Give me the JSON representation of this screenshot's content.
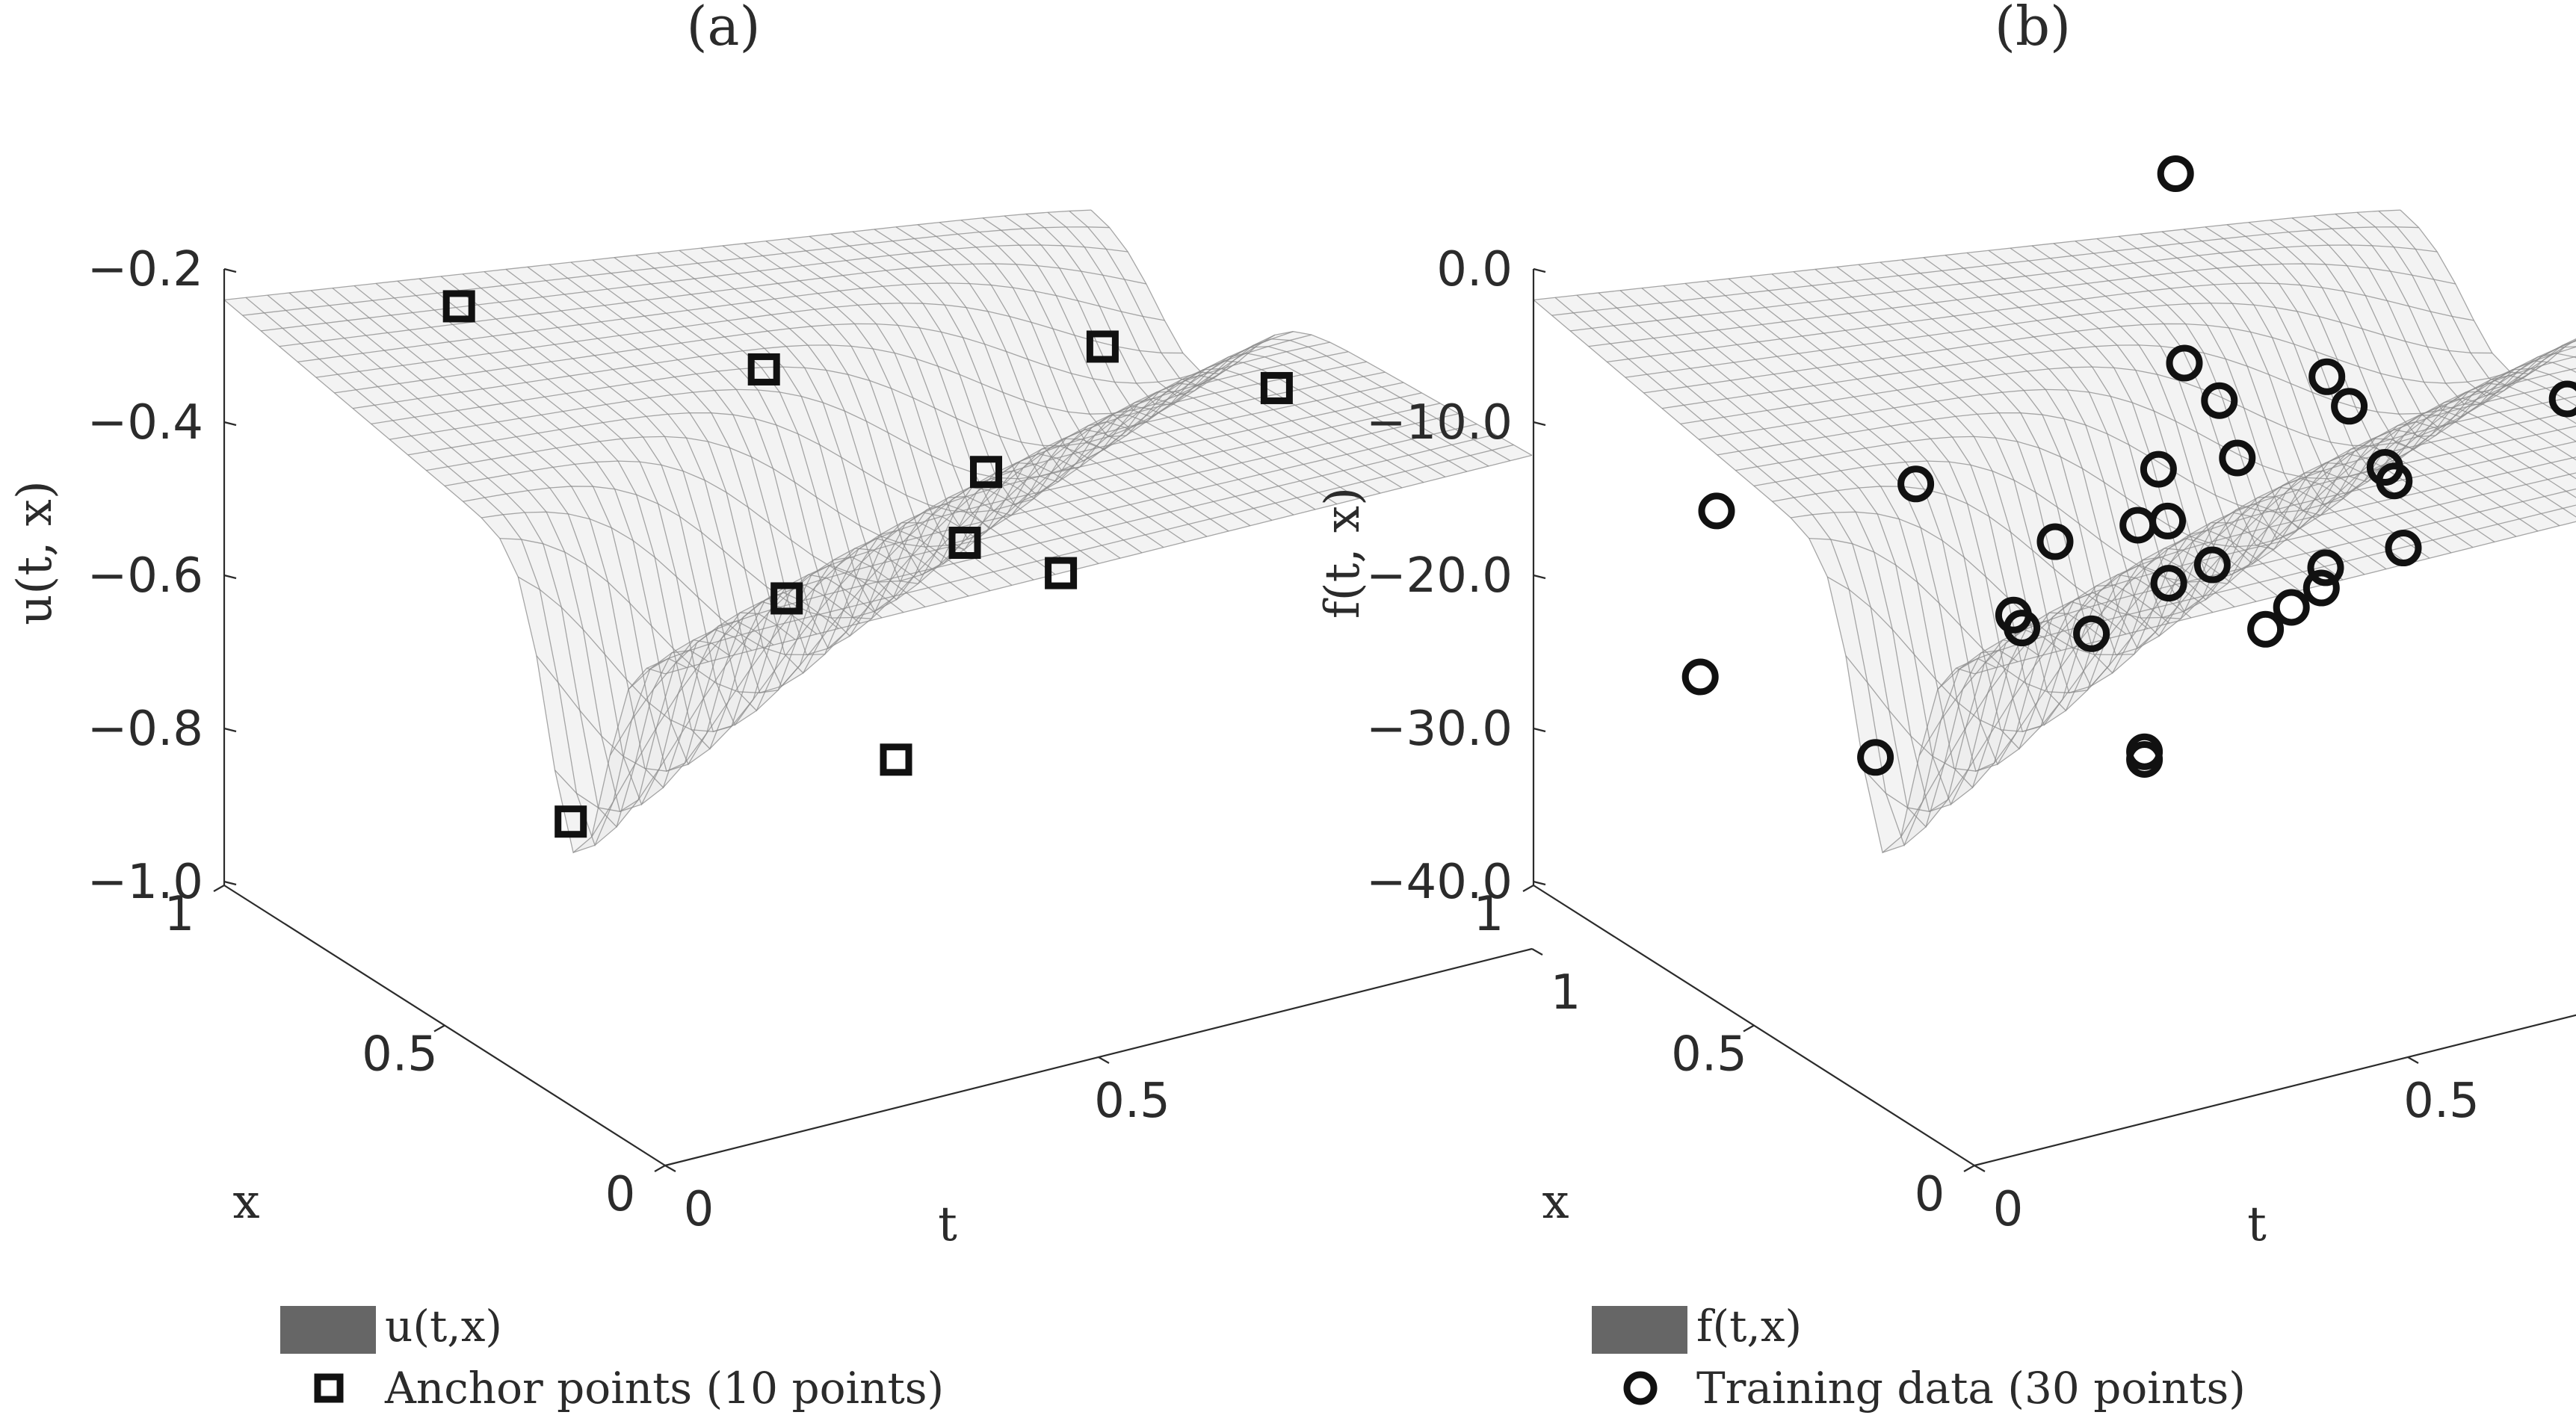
{
  "chart_data": [
    {
      "type": "surface3d",
      "panel_label": "(a)",
      "zlabel": "u(t, x)",
      "xlabel": "t",
      "ylabel": "x",
      "t_ticks": [
        "0",
        "0.5",
        "1"
      ],
      "x_ticks": [
        "0",
        "0.5",
        "1"
      ],
      "z_ticks": [
        "−1.0",
        "−0.8",
        "−0.6",
        "−0.4",
        "−0.2"
      ],
      "zlim": [
        -1.0,
        -0.2
      ],
      "surface_name": "u(t,x)",
      "marker_name": "Anchor points (10 points)",
      "marker_shape": "square",
      "points": [
        {
          "t": 0.12,
          "x": 0.45,
          "z": -0.93
        },
        {
          "t": 0.48,
          "x": 0.42,
          "z": -0.94
        },
        {
          "t": 0.42,
          "x": 0.55,
          "z": -0.76
        },
        {
          "t": 0.22,
          "x": 0.9,
          "z": -0.45
        },
        {
          "t": 0.47,
          "x": 0.7,
          "z": -0.53
        },
        {
          "t": 0.6,
          "x": 0.5,
          "z": -0.72
        },
        {
          "t": 0.65,
          "x": 0.55,
          "z": -0.66
        },
        {
          "t": 0.66,
          "x": 0.4,
          "z": -0.74
        },
        {
          "t": 0.82,
          "x": 0.62,
          "z": -0.57
        },
        {
          "t": 0.97,
          "x": 0.52,
          "z": -0.63
        }
      ]
    },
    {
      "type": "surface3d",
      "panel_label": "(b)",
      "zlabel": "f(t, x)",
      "xlabel": "t",
      "ylabel": "x",
      "t_ticks": [
        "0",
        "0.5",
        "1"
      ],
      "x_ticks": [
        "0",
        "0.5",
        "1"
      ],
      "z_ticks": [
        "−40.0",
        "−30.0",
        "−20.0",
        "−10.0",
        "0.0"
      ],
      "zlim": [
        -40,
        0
      ],
      "surface_name": "f(t,x)",
      "marker_name": "Training data (30 points)",
      "marker_shape": "circle",
      "points": [
        {
          "t": 0.05,
          "x": 0.72,
          "z": -31
        },
        {
          "t": 0.14,
          "x": 0.86,
          "z": -24
        },
        {
          "t": 0.13,
          "x": 0.48,
          "z": -33
        },
        {
          "t": 0.33,
          "x": 0.56,
          "z": -28
        },
        {
          "t": 0.36,
          "x": 0.6,
          "z": -30
        },
        {
          "t": 0.38,
          "x": 0.88,
          "z": -26
        },
        {
          "t": 0.42,
          "x": 0.44,
          "z": -36
        },
        {
          "t": 0.42,
          "x": 0.44,
          "z": -36.5
        },
        {
          "t": 0.43,
          "x": 0.58,
          "z": -31
        },
        {
          "t": 0.5,
          "x": 0.8,
          "z": -30
        },
        {
          "t": 0.56,
          "x": 0.66,
          "z": -31
        },
        {
          "t": 0.57,
          "x": 0.75,
          "z": -29
        },
        {
          "t": 0.58,
          "x": 0.48,
          "z": -31
        },
        {
          "t": 0.6,
          "x": 0.64,
          "z": -30
        },
        {
          "t": 0.62,
          "x": 0.5,
          "z": -30.5
        },
        {
          "t": 0.64,
          "x": 0.82,
          "z": -31
        },
        {
          "t": 0.66,
          "x": 0.88,
          "z": -29
        },
        {
          "t": 0.7,
          "x": 0.78,
          "z": -27
        },
        {
          "t": 0.68,
          "x": 0.55,
          "z": -31
        },
        {
          "t": 0.69,
          "x": 0.56,
          "z": -30
        },
        {
          "t": 0.7,
          "x": 0.92,
          "z": -11
        },
        {
          "t": 0.7,
          "x": 0.9,
          "z": -23
        },
        {
          "t": 0.72,
          "x": 0.86,
          "z": -25
        },
        {
          "t": 0.8,
          "x": 0.6,
          "z": -31
        },
        {
          "t": 0.82,
          "x": 0.66,
          "z": -28
        },
        {
          "t": 0.85,
          "x": 0.74,
          "z": -29
        },
        {
          "t": 0.88,
          "x": 0.88,
          "z": -28
        },
        {
          "t": 0.9,
          "x": 0.97,
          "z": -28
        },
        {
          "t": 1.0,
          "x": 0.38,
          "z": -33
        },
        {
          "t": 1.05,
          "x": 0.72,
          "z": -27
        }
      ]
    }
  ]
}
